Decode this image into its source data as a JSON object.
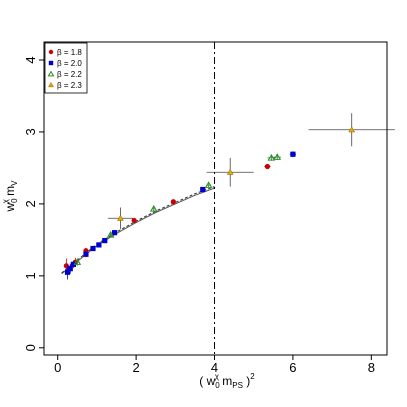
{
  "chart_data": {
    "type": "scatter",
    "xlabel_parts": [
      "( w",
      "0",
      "χ",
      " m",
      "PS",
      " )",
      "2"
    ],
    "ylabel_parts": [
      "w",
      "0",
      "χ",
      " m",
      "V"
    ],
    "xlim": [
      -0.35,
      8.4
    ],
    "ylim": [
      -0.1,
      4.25
    ],
    "x_ticks": [
      0,
      2,
      4,
      6,
      8
    ],
    "y_ticks": [
      0,
      1,
      2,
      3,
      4
    ],
    "x_tick_labels": [
      "0",
      "2",
      "4",
      "6",
      "8"
    ],
    "y_tick_labels": [
      "0",
      "1",
      "2",
      "3",
      "4"
    ],
    "vertical_line_x": 4.0,
    "legend_position": "top-left",
    "legend": [
      {
        "label": "β = 1.8",
        "color": "#cc0000",
        "marker": "circle"
      },
      {
        "label": "β = 2.0",
        "color": "#0000cc",
        "marker": "square"
      },
      {
        "label": "β = 2.2",
        "color": "#2e8b2e",
        "marker": "triangle-open"
      },
      {
        "label": "β = 2.3",
        "color": "#e6a800",
        "marker": "triangle"
      }
    ],
    "series": [
      {
        "name": "β = 1.8",
        "color": "#cc0000",
        "marker": "circle",
        "points": [
          {
            "x": 0.22,
            "y": 1.14,
            "xerr": 0.05,
            "yerr": 0.1
          },
          {
            "x": 0.45,
            "y": 1.19,
            "xerr": 0.05,
            "yerr": 0.06
          },
          {
            "x": 0.72,
            "y": 1.35,
            "xerr": 0.04,
            "yerr": 0.04
          },
          {
            "x": 1.95,
            "y": 1.77,
            "xerr": 0.05,
            "yerr": 0.03
          },
          {
            "x": 2.95,
            "y": 2.03,
            "xerr": 0.05,
            "yerr": 0.03
          },
          {
            "x": 5.35,
            "y": 2.52,
            "xerr": 0.08,
            "yerr": 0.03
          }
        ]
      },
      {
        "name": "β = 2.0",
        "color": "#0000cc",
        "marker": "square",
        "points": [
          {
            "x": 0.25,
            "y": 1.05,
            "xerr": 0.04,
            "yerr": 0.1
          },
          {
            "x": 0.32,
            "y": 1.1,
            "xerr": 0.04,
            "yerr": 0.07
          },
          {
            "x": 0.4,
            "y": 1.16,
            "xerr": 0.04,
            "yerr": 0.05
          },
          {
            "x": 0.72,
            "y": 1.3,
            "xerr": 0.04,
            "yerr": 0.04
          },
          {
            "x": 0.9,
            "y": 1.38,
            "xerr": 0.04,
            "yerr": 0.03
          },
          {
            "x": 1.05,
            "y": 1.43,
            "xerr": 0.04,
            "yerr": 0.03
          },
          {
            "x": 1.2,
            "y": 1.49,
            "xerr": 0.04,
            "yerr": 0.03
          },
          {
            "x": 1.45,
            "y": 1.6,
            "xerr": 0.04,
            "yerr": 0.03
          },
          {
            "x": 3.7,
            "y": 2.2,
            "xerr": 0.06,
            "yerr": 0.03
          },
          {
            "x": 6.0,
            "y": 2.69,
            "xerr": 0.08,
            "yerr": 0.04
          }
        ]
      },
      {
        "name": "β = 2.2",
        "color": "#2e8b2e",
        "marker": "triangle-open",
        "points": [
          {
            "x": 0.5,
            "y": 1.19,
            "xerr": 0.04,
            "yerr": 0.05
          },
          {
            "x": 1.35,
            "y": 1.57,
            "xerr": 0.04,
            "yerr": 0.03
          },
          {
            "x": 2.45,
            "y": 1.93,
            "xerr": 0.05,
            "yerr": 0.03
          },
          {
            "x": 3.85,
            "y": 2.26,
            "xerr": 0.06,
            "yerr": 0.03
          },
          {
            "x": 5.45,
            "y": 2.64,
            "xerr": 0.1,
            "yerr": 0.04
          },
          {
            "x": 5.6,
            "y": 2.65,
            "xerr": 0.1,
            "yerr": 0.04
          }
        ]
      },
      {
        "name": "β = 2.3",
        "color": "#e6a800",
        "marker": "triangle",
        "points": [
          {
            "x": 1.6,
            "y": 1.8,
            "xerr": 0.32,
            "yerr": 0.15
          },
          {
            "x": 4.4,
            "y": 2.44,
            "xerr": 0.6,
            "yerr": 0.2
          },
          {
            "x": 7.5,
            "y": 3.03,
            "xerr": 1.1,
            "yerr": 0.23
          }
        ]
      }
    ],
    "fit_curves": [
      {
        "style": "solid",
        "color": "#555555",
        "points": [
          [
            0.1,
            1.03
          ],
          [
            0.5,
            1.2
          ],
          [
            1.0,
            1.42
          ],
          [
            1.5,
            1.59
          ],
          [
            2.0,
            1.74
          ],
          [
            2.5,
            1.88
          ],
          [
            3.0,
            2.0
          ],
          [
            3.5,
            2.12
          ],
          [
            4.0,
            2.22
          ]
        ]
      },
      {
        "style": "dashed",
        "color": "#333333",
        "points": [
          [
            0.1,
            1.04
          ],
          [
            0.5,
            1.22
          ],
          [
            1.0,
            1.44
          ],
          [
            1.5,
            1.61
          ],
          [
            2.0,
            1.76
          ],
          [
            2.5,
            1.9
          ],
          [
            3.0,
            2.02
          ],
          [
            3.5,
            2.14
          ],
          [
            4.0,
            2.24
          ]
        ]
      }
    ]
  }
}
